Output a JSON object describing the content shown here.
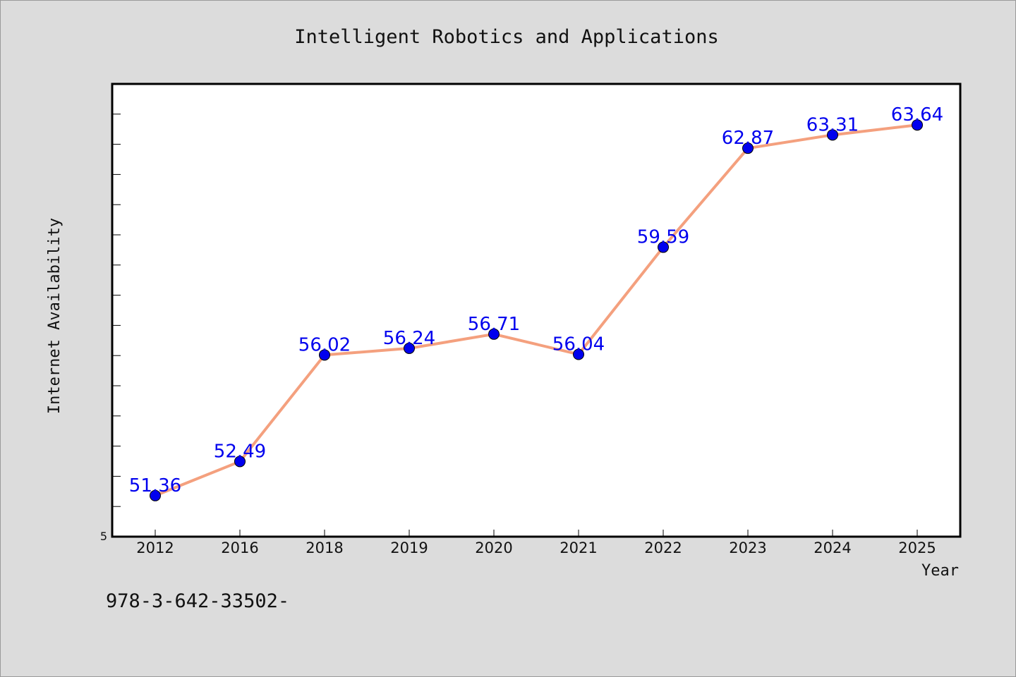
{
  "chart_data": {
    "type": "line",
    "title": "Intelligent Robotics and Applications",
    "xlabel": "Year",
    "ylabel": "Internet Availability",
    "categories": [
      "2012",
      "2016",
      "2018",
      "2019",
      "2020",
      "2021",
      "2022",
      "2023",
      "2024",
      "2025"
    ],
    "values": [
      51.36,
      52.49,
      56.02,
      56.24,
      56.71,
      56.04,
      59.59,
      62.87,
      63.31,
      63.64
    ],
    "data_labels": [
      "51.36",
      "52.49",
      "56.02",
      "56.24",
      "56.71",
      "56.04",
      "59.59",
      "62.87",
      "63.31",
      "63.64"
    ],
    "ylim": [
      50,
      65
    ],
    "y_tick_labels": [
      "5"
    ],
    "grid": false,
    "legend": "none",
    "line_color": "#f4a07e",
    "marker_color": "#0000ee",
    "label_color": "#0000ee"
  },
  "footer_text": "978-3-642-33502-"
}
